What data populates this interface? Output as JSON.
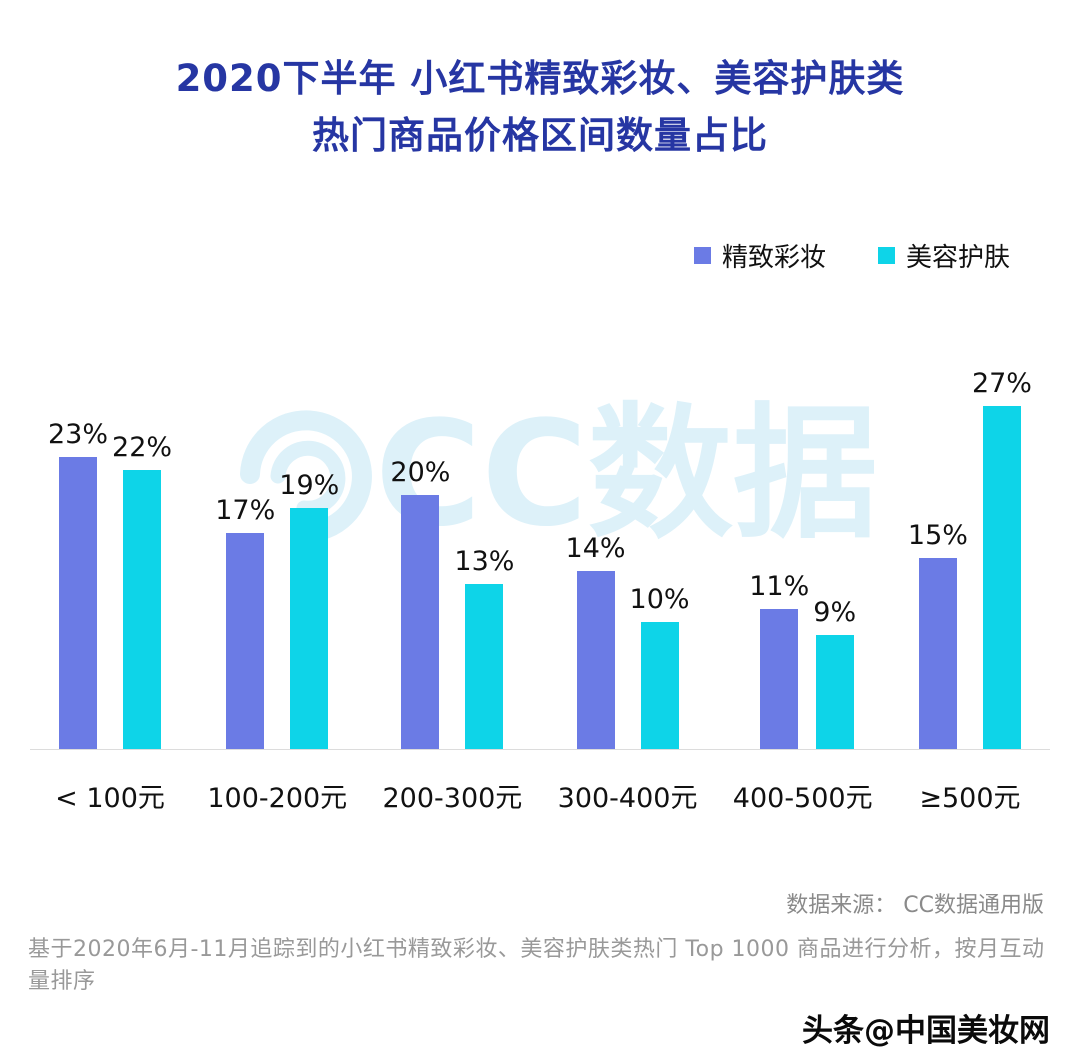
{
  "title": {
    "line1": "2020下半年 小红书精致彩妆、美容护肤类",
    "line2": "热门商品价格区间数量占比"
  },
  "colors": {
    "title": "#2636A3",
    "makeup": "#6B7BE5",
    "skincare": "#0ED4E8",
    "watermark": "#DDF1F9",
    "baseline": "#DCDCDC"
  },
  "chart_data": {
    "type": "bar",
    "title": "2020下半年 小红书精致彩妆、美容护肤类热门商品价格区间数量占比",
    "categories": [
      "< 100元",
      "100-200元",
      "200-300元",
      "300-400元",
      "400-500元",
      "≥500元"
    ],
    "series": [
      {
        "name": "精致彩妆",
        "color": "#6B7BE5",
        "values": [
          23,
          17,
          20,
          14,
          11,
          15
        ]
      },
      {
        "name": "美容护肤",
        "color": "#0ED4E8",
        "values": [
          22,
          19,
          13,
          10,
          9,
          27
        ]
      }
    ],
    "unit": "%",
    "xlabel": "",
    "ylabel": "",
    "ylim": [
      0,
      30
    ],
    "grid": false,
    "legend_position": "top-right",
    "value_labels": true
  },
  "watermark": {
    "text": "CC数据",
    "icon": "cc-data-logo"
  },
  "footer": {
    "source": "数据来源：  CC数据通用版",
    "note": "基于2020年6月-11月追踪到的小红书精致彩妆、美容护肤类热门 Top 1000 商品进行分析，按月互动量排序",
    "credit": "头条@中国美妆网"
  }
}
